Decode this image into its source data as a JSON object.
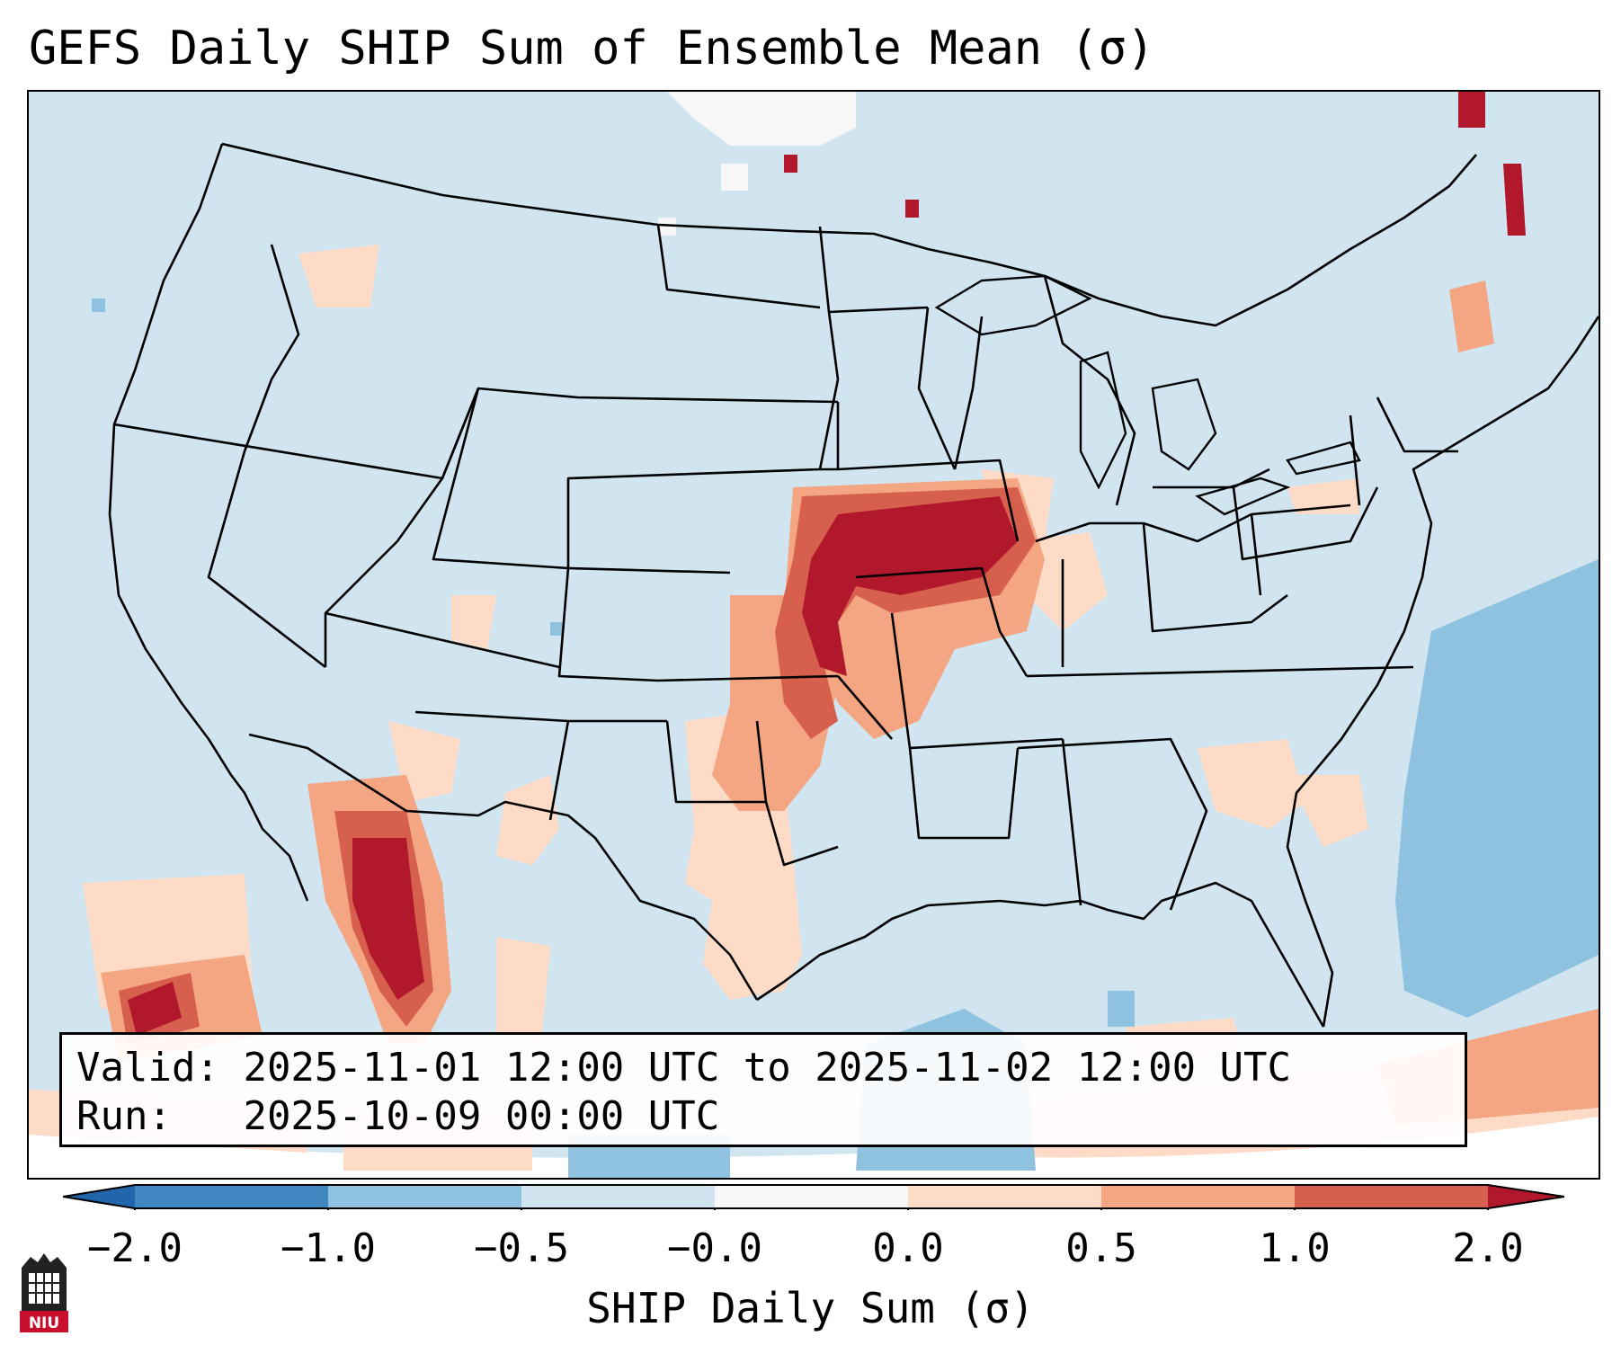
{
  "title": "GEFS Daily SHIP Sum of Ensemble Mean (σ)",
  "info": {
    "valid_label": "Valid:",
    "valid_value": "2025-11-01 12:00 UTC to 2025-11-02 12:00 UTC",
    "run_label": "Run:",
    "run_value": "2025-10-09 00:00 UTC"
  },
  "colorbar": {
    "label": "SHIP Daily Sum (σ)",
    "ticks": [
      "−2.0",
      "−1.0",
      "−0.5",
      "−0.0",
      "0.0",
      "0.5",
      "1.0",
      "2.0"
    ],
    "bin_colors": [
      "#3f87c0",
      "#8fc2de",
      "#d1e5f0",
      "#f7f7f7",
      "#fddbc7",
      "#f4a582",
      "#d6604d",
      "#b2182b"
    ],
    "under_color": "#2166ac",
    "over_color": "#b2182b"
  },
  "map": {
    "background_color": "#d1e5f0",
    "outside_color": "#ffffff",
    "boundary_color": "#000000"
  },
  "logo": {
    "text": "NIU"
  }
}
